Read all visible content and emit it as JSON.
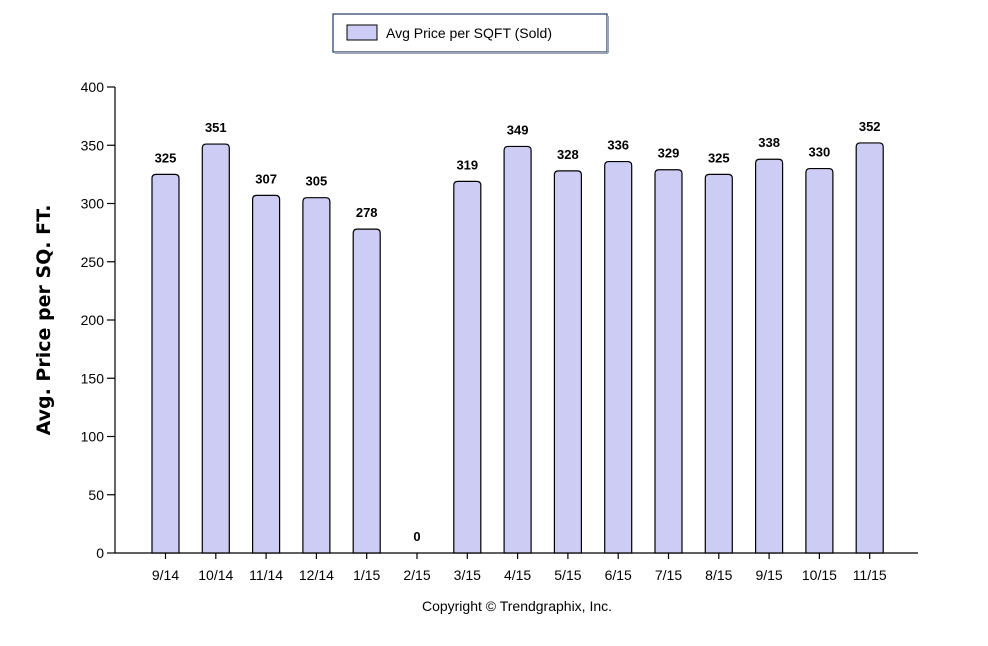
{
  "chart_data": {
    "type": "bar",
    "categories": [
      "9/14",
      "10/14",
      "11/14",
      "12/14",
      "1/15",
      "2/15",
      "3/15",
      "4/15",
      "5/15",
      "6/15",
      "7/15",
      "8/15",
      "9/15",
      "10/15",
      "11/15"
    ],
    "series": [
      {
        "name": "Avg Price per SQFT (Sold)",
        "values": [
          325,
          351,
          307,
          305,
          278,
          0,
          319,
          349,
          328,
          336,
          329,
          325,
          338,
          330,
          352
        ],
        "color": "#ccccf5"
      }
    ],
    "ylabel": "Avg. Price per SQ. FT.",
    "xlabel": "",
    "ylim": [
      0,
      400
    ],
    "yticks": [
      0,
      50,
      100,
      150,
      200,
      250,
      300,
      350,
      400
    ],
    "grid": false,
    "legend": "top-center",
    "data_labels": true
  },
  "copyright": "Copyright © Trendgraphix, Inc."
}
